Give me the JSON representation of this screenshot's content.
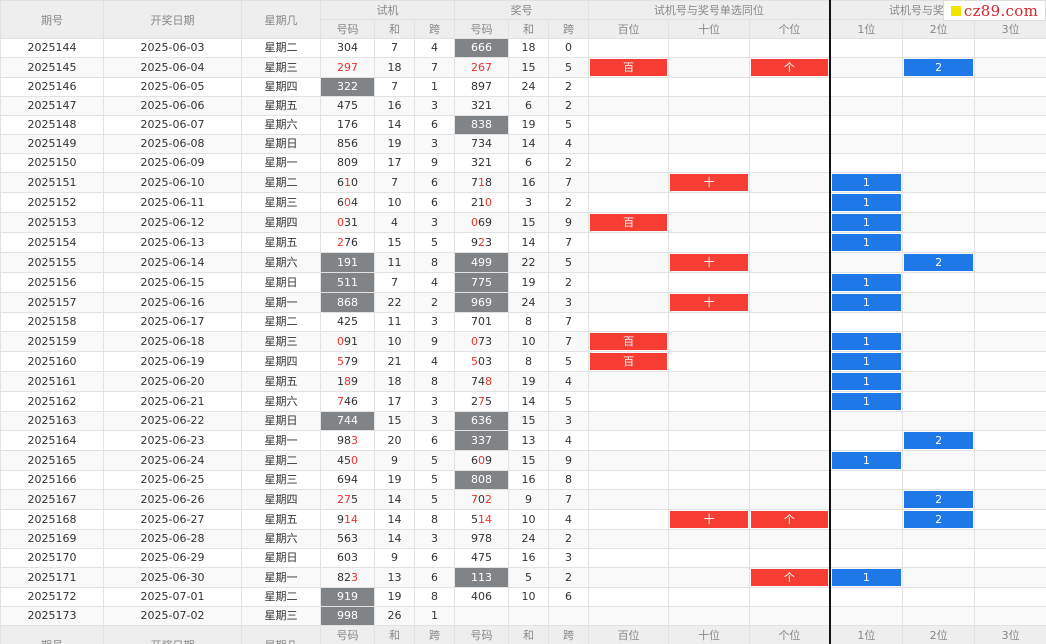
{
  "headers": {
    "period": "期号",
    "draw_date": "开奖日期",
    "weekday": "星期几",
    "trial_group": "试机",
    "prize_group": "奖号",
    "single_group": "试机号与奖号单选同位",
    "combo_group": "试机号与奖号组选中",
    "code": "号码",
    "sum": "和",
    "span": "跨",
    "hundreds": "百位",
    "tens": "十位",
    "ones": "个位",
    "pos1": "1位",
    "pos2": "2位",
    "pos3": "3位"
  },
  "logo": {
    "text": "cz89.com"
  },
  "colors": {
    "hit_red": "#f53d33",
    "hit_blue": "#1e78e8",
    "highlight_gray": "#808486",
    "digit_red": "#e8352c"
  },
  "rows": [
    {
      "period": "2025144",
      "date": "2025-06-03",
      "weekday": "星期二",
      "trial": "304",
      "trial_sum": "7",
      "trial_span": "4",
      "prize": "666",
      "prize_sum": "18",
      "prize_span": "0",
      "trial_hl": false,
      "prize_hl": true,
      "trial_red": [],
      "prize_red": [],
      "bai": "",
      "shi": "",
      "ge": "",
      "p1": "",
      "p2": "",
      "p3": ""
    },
    {
      "period": "2025145",
      "date": "2025-06-04",
      "weekday": "星期三",
      "trial": "297",
      "trial_sum": "18",
      "trial_span": "7",
      "prize": "267",
      "prize_sum": "15",
      "prize_span": "5",
      "trial_hl": false,
      "prize_hl": false,
      "trial_red": [
        0,
        1,
        2
      ],
      "prize_red": [
        0,
        1,
        2
      ],
      "bai": "百",
      "shi": "",
      "ge": "个",
      "p1": "",
      "p2": "2",
      "p3": ""
    },
    {
      "period": "2025146",
      "date": "2025-06-05",
      "weekday": "星期四",
      "trial": "322",
      "trial_sum": "7",
      "trial_span": "1",
      "prize": "897",
      "prize_sum": "24",
      "prize_span": "2",
      "trial_hl": true,
      "prize_hl": false,
      "trial_red": [],
      "prize_red": [],
      "bai": "",
      "shi": "",
      "ge": "",
      "p1": "",
      "p2": "",
      "p3": ""
    },
    {
      "period": "2025147",
      "date": "2025-06-06",
      "weekday": "星期五",
      "trial": "475",
      "trial_sum": "16",
      "trial_span": "3",
      "prize": "321",
      "prize_sum": "6",
      "prize_span": "2",
      "trial_hl": false,
      "prize_hl": false,
      "trial_red": [],
      "prize_red": [],
      "bai": "",
      "shi": "",
      "ge": "",
      "p1": "",
      "p2": "",
      "p3": ""
    },
    {
      "period": "2025148",
      "date": "2025-06-07",
      "weekday": "星期六",
      "trial": "176",
      "trial_sum": "14",
      "trial_span": "6",
      "prize": "838",
      "prize_sum": "19",
      "prize_span": "5",
      "trial_hl": false,
      "prize_hl": true,
      "trial_red": [],
      "prize_red": [],
      "bai": "",
      "shi": "",
      "ge": "",
      "p1": "",
      "p2": "",
      "p3": ""
    },
    {
      "period": "2025149",
      "date": "2025-06-08",
      "weekday": "星期日",
      "trial": "856",
      "trial_sum": "19",
      "trial_span": "3",
      "prize": "734",
      "prize_sum": "14",
      "prize_span": "4",
      "trial_hl": false,
      "prize_hl": false,
      "trial_red": [],
      "prize_red": [],
      "bai": "",
      "shi": "",
      "ge": "",
      "p1": "",
      "p2": "",
      "p3": ""
    },
    {
      "period": "2025150",
      "date": "2025-06-09",
      "weekday": "星期一",
      "trial": "809",
      "trial_sum": "17",
      "trial_span": "9",
      "prize": "321",
      "prize_sum": "6",
      "prize_span": "2",
      "trial_hl": false,
      "prize_hl": false,
      "trial_red": [],
      "prize_red": [],
      "bai": "",
      "shi": "",
      "ge": "",
      "p1": "",
      "p2": "",
      "p3": ""
    },
    {
      "period": "2025151",
      "date": "2025-06-10",
      "weekday": "星期二",
      "trial": "610",
      "trial_sum": "7",
      "trial_span": "6",
      "prize": "718",
      "prize_sum": "16",
      "prize_span": "7",
      "trial_hl": false,
      "prize_hl": false,
      "trial_red": [
        1
      ],
      "prize_red": [
        1
      ],
      "bai": "",
      "shi": "十",
      "ge": "",
      "p1": "1",
      "p2": "",
      "p3": ""
    },
    {
      "period": "2025152",
      "date": "2025-06-11",
      "weekday": "星期三",
      "trial": "604",
      "trial_sum": "10",
      "trial_span": "6",
      "prize": "210",
      "prize_sum": "3",
      "prize_span": "2",
      "trial_hl": false,
      "prize_hl": false,
      "trial_red": [
        1
      ],
      "prize_red": [
        2
      ],
      "bai": "",
      "shi": "",
      "ge": "",
      "p1": "1",
      "p2": "",
      "p3": ""
    },
    {
      "period": "2025153",
      "date": "2025-06-12",
      "weekday": "星期四",
      "trial": "031",
      "trial_sum": "4",
      "trial_span": "3",
      "prize": "069",
      "prize_sum": "15",
      "prize_span": "9",
      "trial_hl": false,
      "prize_hl": false,
      "trial_red": [
        0
      ],
      "prize_red": [
        0
      ],
      "bai": "百",
      "shi": "",
      "ge": "",
      "p1": "1",
      "p2": "",
      "p3": ""
    },
    {
      "period": "2025154",
      "date": "2025-06-13",
      "weekday": "星期五",
      "trial": "276",
      "trial_sum": "15",
      "trial_span": "5",
      "prize": "923",
      "prize_sum": "14",
      "prize_span": "7",
      "trial_hl": false,
      "prize_hl": false,
      "trial_red": [
        0
      ],
      "prize_red": [
        1
      ],
      "bai": "",
      "shi": "",
      "ge": "",
      "p1": "1",
      "p2": "",
      "p3": ""
    },
    {
      "period": "2025155",
      "date": "2025-06-14",
      "weekday": "星期六",
      "trial": "191",
      "trial_sum": "11",
      "trial_span": "8",
      "prize": "499",
      "prize_sum": "22",
      "prize_span": "5",
      "trial_hl": true,
      "prize_hl": true,
      "trial_red": [
        1
      ],
      "prize_red": [
        1,
        2
      ],
      "bai": "",
      "shi": "十",
      "ge": "",
      "p1": "",
      "p2": "2",
      "p3": ""
    },
    {
      "period": "2025156",
      "date": "2025-06-15",
      "weekday": "星期日",
      "trial": "511",
      "trial_sum": "7",
      "trial_span": "4",
      "prize": "775",
      "prize_sum": "19",
      "prize_span": "2",
      "trial_hl": true,
      "prize_hl": true,
      "trial_red": [
        0
      ],
      "prize_red": [
        2
      ],
      "bai": "",
      "shi": "",
      "ge": "",
      "p1": "1",
      "p2": "",
      "p3": ""
    },
    {
      "period": "2025157",
      "date": "2025-06-16",
      "weekday": "星期一",
      "trial": "868",
      "trial_sum": "22",
      "trial_span": "2",
      "prize": "969",
      "prize_sum": "24",
      "prize_span": "3",
      "trial_hl": true,
      "prize_hl": true,
      "trial_red": [
        1
      ],
      "prize_red": [
        1
      ],
      "bai": "",
      "shi": "十",
      "ge": "",
      "p1": "1",
      "p2": "",
      "p3": ""
    },
    {
      "period": "2025158",
      "date": "2025-06-17",
      "weekday": "星期二",
      "trial": "425",
      "trial_sum": "11",
      "trial_span": "3",
      "prize": "701",
      "prize_sum": "8",
      "prize_span": "7",
      "trial_hl": false,
      "prize_hl": false,
      "trial_red": [],
      "prize_red": [],
      "bai": "",
      "shi": "",
      "ge": "",
      "p1": "",
      "p2": "",
      "p3": ""
    },
    {
      "period": "2025159",
      "date": "2025-06-18",
      "weekday": "星期三",
      "trial": "091",
      "trial_sum": "10",
      "trial_span": "9",
      "prize": "073",
      "prize_sum": "10",
      "prize_span": "7",
      "trial_hl": false,
      "prize_hl": false,
      "trial_red": [
        0
      ],
      "prize_red": [
        0
      ],
      "bai": "百",
      "shi": "",
      "ge": "",
      "p1": "1",
      "p2": "",
      "p3": ""
    },
    {
      "period": "2025160",
      "date": "2025-06-19",
      "weekday": "星期四",
      "trial": "579",
      "trial_sum": "21",
      "trial_span": "4",
      "prize": "503",
      "prize_sum": "8",
      "prize_span": "5",
      "trial_hl": false,
      "prize_hl": false,
      "trial_red": [
        0
      ],
      "prize_red": [
        0
      ],
      "bai": "百",
      "shi": "",
      "ge": "",
      "p1": "1",
      "p2": "",
      "p3": ""
    },
    {
      "period": "2025161",
      "date": "2025-06-20",
      "weekday": "星期五",
      "trial": "189",
      "trial_sum": "18",
      "trial_span": "8",
      "prize": "748",
      "prize_sum": "19",
      "prize_span": "4",
      "trial_hl": false,
      "prize_hl": false,
      "trial_red": [
        1
      ],
      "prize_red": [
        2
      ],
      "bai": "",
      "shi": "",
      "ge": "",
      "p1": "1",
      "p2": "",
      "p3": ""
    },
    {
      "period": "2025162",
      "date": "2025-06-21",
      "weekday": "星期六",
      "trial": "746",
      "trial_sum": "17",
      "trial_span": "3",
      "prize": "275",
      "prize_sum": "14",
      "prize_span": "5",
      "trial_hl": false,
      "prize_hl": false,
      "trial_red": [
        0
      ],
      "prize_red": [
        1
      ],
      "bai": "",
      "shi": "",
      "ge": "",
      "p1": "1",
      "p2": "",
      "p3": ""
    },
    {
      "period": "2025163",
      "date": "2025-06-22",
      "weekday": "星期日",
      "trial": "744",
      "trial_sum": "15",
      "trial_span": "3",
      "prize": "636",
      "prize_sum": "15",
      "prize_span": "3",
      "trial_hl": true,
      "prize_hl": true,
      "trial_red": [],
      "prize_red": [],
      "bai": "",
      "shi": "",
      "ge": "",
      "p1": "",
      "p2": "",
      "p3": ""
    },
    {
      "period": "2025164",
      "date": "2025-06-23",
      "weekday": "星期一",
      "trial": "983",
      "trial_sum": "20",
      "trial_span": "6",
      "prize": "337",
      "prize_sum": "13",
      "prize_span": "4",
      "trial_hl": false,
      "prize_hl": true,
      "trial_red": [
        2
      ],
      "prize_red": [
        0,
        1
      ],
      "bai": "",
      "shi": "",
      "ge": "",
      "p1": "",
      "p2": "2",
      "p3": ""
    },
    {
      "period": "2025165",
      "date": "2025-06-24",
      "weekday": "星期二",
      "trial": "450",
      "trial_sum": "9",
      "trial_span": "5",
      "prize": "609",
      "prize_sum": "15",
      "prize_span": "9",
      "trial_hl": false,
      "prize_hl": false,
      "trial_red": [
        2
      ],
      "prize_red": [
        1
      ],
      "bai": "",
      "shi": "",
      "ge": "",
      "p1": "1",
      "p2": "",
      "p3": ""
    },
    {
      "period": "2025166",
      "date": "2025-06-25",
      "weekday": "星期三",
      "trial": "694",
      "trial_sum": "19",
      "trial_span": "5",
      "prize": "808",
      "prize_sum": "16",
      "prize_span": "8",
      "trial_hl": false,
      "prize_hl": true,
      "trial_red": [],
      "prize_red": [],
      "bai": "",
      "shi": "",
      "ge": "",
      "p1": "",
      "p2": "",
      "p3": ""
    },
    {
      "period": "2025167",
      "date": "2025-06-26",
      "weekday": "星期四",
      "trial": "275",
      "trial_sum": "14",
      "trial_span": "5",
      "prize": "702",
      "prize_sum": "9",
      "prize_span": "7",
      "trial_hl": false,
      "prize_hl": false,
      "trial_red": [
        0,
        1
      ],
      "prize_red": [
        0,
        2
      ],
      "bai": "",
      "shi": "",
      "ge": "",
      "p1": "",
      "p2": "2",
      "p3": ""
    },
    {
      "period": "2025168",
      "date": "2025-06-27",
      "weekday": "星期五",
      "trial": "914",
      "trial_sum": "14",
      "trial_span": "8",
      "prize": "514",
      "prize_sum": "10",
      "prize_span": "4",
      "trial_hl": false,
      "prize_hl": false,
      "trial_red": [
        1,
        2
      ],
      "prize_red": [
        1,
        2
      ],
      "bai": "",
      "shi": "十",
      "ge": "个",
      "p1": "",
      "p2": "2",
      "p3": ""
    },
    {
      "period": "2025169",
      "date": "2025-06-28",
      "weekday": "星期六",
      "trial": "563",
      "trial_sum": "14",
      "trial_span": "3",
      "prize": "978",
      "prize_sum": "24",
      "prize_span": "2",
      "trial_hl": false,
      "prize_hl": false,
      "trial_red": [],
      "prize_red": [],
      "bai": "",
      "shi": "",
      "ge": "",
      "p1": "",
      "p2": "",
      "p3": ""
    },
    {
      "period": "2025170",
      "date": "2025-06-29",
      "weekday": "星期日",
      "trial": "603",
      "trial_sum": "9",
      "trial_span": "6",
      "prize": "475",
      "prize_sum": "16",
      "prize_span": "3",
      "trial_hl": false,
      "prize_hl": false,
      "trial_red": [],
      "prize_red": [],
      "bai": "",
      "shi": "",
      "ge": "",
      "p1": "",
      "p2": "",
      "p3": ""
    },
    {
      "period": "2025171",
      "date": "2025-06-30",
      "weekday": "星期一",
      "trial": "823",
      "trial_sum": "13",
      "trial_span": "6",
      "prize": "113",
      "prize_sum": "5",
      "prize_span": "2",
      "trial_hl": false,
      "prize_hl": true,
      "trial_red": [
        2
      ],
      "prize_red": [
        2
      ],
      "bai": "",
      "shi": "",
      "ge": "个",
      "p1": "1",
      "p2": "",
      "p3": ""
    },
    {
      "period": "2025172",
      "date": "2025-07-01",
      "weekday": "星期二",
      "trial": "919",
      "trial_sum": "19",
      "trial_span": "8",
      "prize": "406",
      "prize_sum": "10",
      "prize_span": "6",
      "trial_hl": true,
      "prize_hl": false,
      "trial_red": [],
      "prize_red": [],
      "bai": "",
      "shi": "",
      "ge": "",
      "p1": "",
      "p2": "",
      "p3": ""
    },
    {
      "period": "2025173",
      "date": "2025-07-02",
      "weekday": "星期三",
      "trial": "998",
      "trial_sum": "26",
      "trial_span": "1",
      "prize": "",
      "prize_sum": "",
      "prize_span": "",
      "trial_hl": true,
      "prize_hl": false,
      "trial_red": [],
      "prize_red": [],
      "bai": "",
      "shi": "",
      "ge": "",
      "p1": "",
      "p2": "",
      "p3": ""
    }
  ]
}
